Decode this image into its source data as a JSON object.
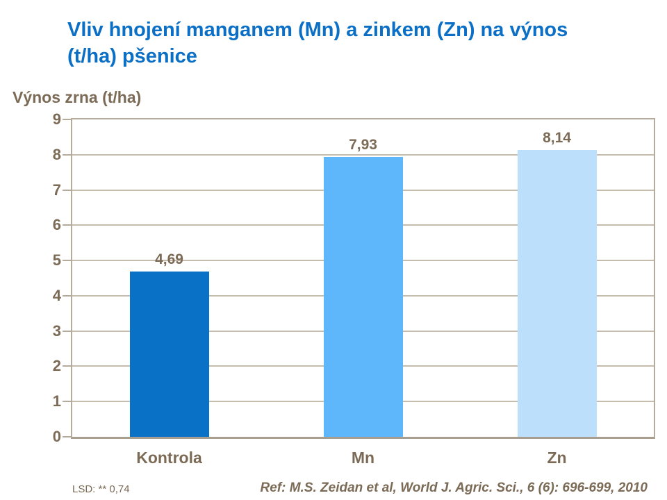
{
  "slide": {
    "title_line1": "Vliv hnojení manganem (Mn) a zinkem (Zn) na výnos",
    "title_line2": "(t/ha) pšenice",
    "title_color": "#0b6fc5",
    "text_color": "#7b6a55",
    "footnote_left": "LSD: ** 0,74",
    "reference": "Ref: M.S. Zeidan et al, World J. Agric. Sci., 6 (6): 696-699, 2010"
  },
  "chart_data": {
    "type": "bar",
    "title": "Výnos zrna (t/ha)",
    "categories": [
      "Kontrola",
      "Mn",
      "Zn"
    ],
    "values": [
      4.69,
      7.93,
      8.14
    ],
    "value_labels": [
      "4,69",
      "7,93",
      "8,14"
    ],
    "bar_colors": [
      "#0a72c6",
      "#5fb7fb",
      "#bce0fc"
    ],
    "xlabel": "",
    "ylabel": "Výnos zrna (t/ha)",
    "ylim": [
      0,
      9
    ],
    "yticks": [
      0,
      1,
      2,
      3,
      4,
      5,
      6,
      7,
      8,
      9
    ],
    "grid": true,
    "gridline_color": "#c6bcae",
    "axis_color": "#b5ab9d",
    "legend_position": "none"
  }
}
